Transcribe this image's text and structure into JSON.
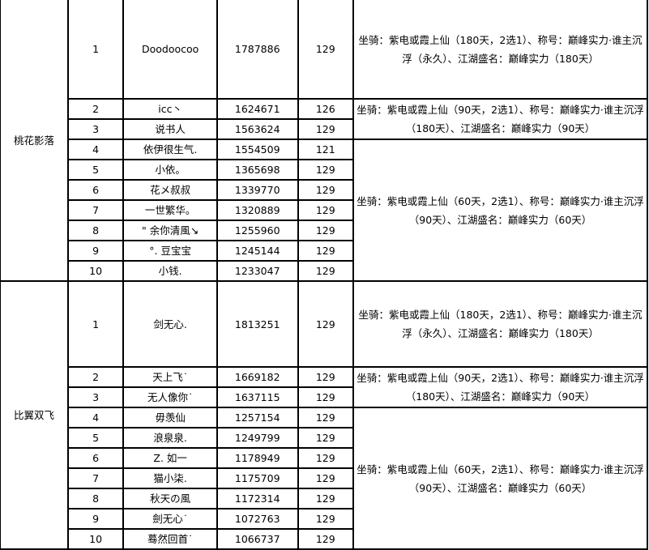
{
  "groups": [
    {
      "name": "桃花影落",
      "rows": [
        {
          "rank": "1",
          "player": "Doodoocoo",
          "score": "1787886",
          "level": "129"
        },
        {
          "rank": "2",
          "player": "icc丶",
          "score": "1624671",
          "level": "126"
        },
        {
          "rank": "3",
          "player": "说书人",
          "score": "1563624",
          "level": "129"
        },
        {
          "rank": "4",
          "player": "依伊很生气.",
          "score": "1554509",
          "level": "121"
        },
        {
          "rank": "5",
          "player": "小依。",
          "score": "1365698",
          "level": "129"
        },
        {
          "rank": "6",
          "player": "花メ叔叔",
          "score": "1339770",
          "level": "129"
        },
        {
          "rank": "7",
          "player": "一世繁华。",
          "score": "1320889",
          "level": "129"
        },
        {
          "rank": "8",
          "player": "\" 余你清風↘",
          "score": "1255960",
          "level": "129"
        },
        {
          "rank": "9",
          "player": "°. 豆宝宝",
          "score": "1245144",
          "level": "129"
        },
        {
          "rank": "10",
          "player": "小钱.",
          "score": "1233047",
          "level": "129"
        }
      ],
      "rewards": [
        "坐骑：紫电或霞上仙（180天，2选1）、称号：巅峰实力·谁主沉浮（永久）、江湖盛名：巅峰实力（180天）",
        "坐骑：紫电或霞上仙（90天，2选1）、称号：巅峰实力·谁主沉浮（180天）、江湖盛名：巅峰实力（90天）",
        "坐骑：紫电或霞上仙（60天，2选1）、称号：巅峰实力·谁主沉浮（90天）、江湖盛名：巅峰实力（60天）"
      ]
    },
    {
      "name": "比翼双飞",
      "rows": [
        {
          "rank": "1",
          "player": "剑无心.",
          "score": "1813251",
          "level": "129"
        },
        {
          "rank": "2",
          "player": "天上飞˙",
          "score": "1669182",
          "level": "129"
        },
        {
          "rank": "3",
          "player": "无人像你˙",
          "score": "1637115",
          "level": "129"
        },
        {
          "rank": "4",
          "player": "毋羡仙",
          "score": "1257154",
          "level": "129"
        },
        {
          "rank": "5",
          "player": "浪泉泉.",
          "score": "1249799",
          "level": "129"
        },
        {
          "rank": "6",
          "player": "Z. 如一",
          "score": "1178949",
          "level": "129"
        },
        {
          "rank": "7",
          "player": "猫小柒.",
          "score": "1175709",
          "level": "129"
        },
        {
          "rank": "8",
          "player": "秋天の風",
          "score": "1172314",
          "level": "129"
        },
        {
          "rank": "9",
          "player": "劍无心˙",
          "score": "1072763",
          "level": "129"
        },
        {
          "rank": "10",
          "player": "蓦然回首˙",
          "score": "1066737",
          "level": "129"
        }
      ],
      "rewards": [
        "坐骑：紫电或霞上仙（180天，2选1）、称号：巅峰实力·谁主沉浮（永久）、江湖盛名：巅峰实力（180天）",
        "坐骑：紫电或霞上仙（90天，2选1）、称号：巅峰实力·谁主沉浮（180天）、江湖盛名：巅峰实力（90天）",
        "坐骑：紫电或霞上仙（60天，2选1）、称号：巅峰实力·谁主沉浮（90天）、江湖盛名：巅峰实力（60天）"
      ]
    }
  ]
}
